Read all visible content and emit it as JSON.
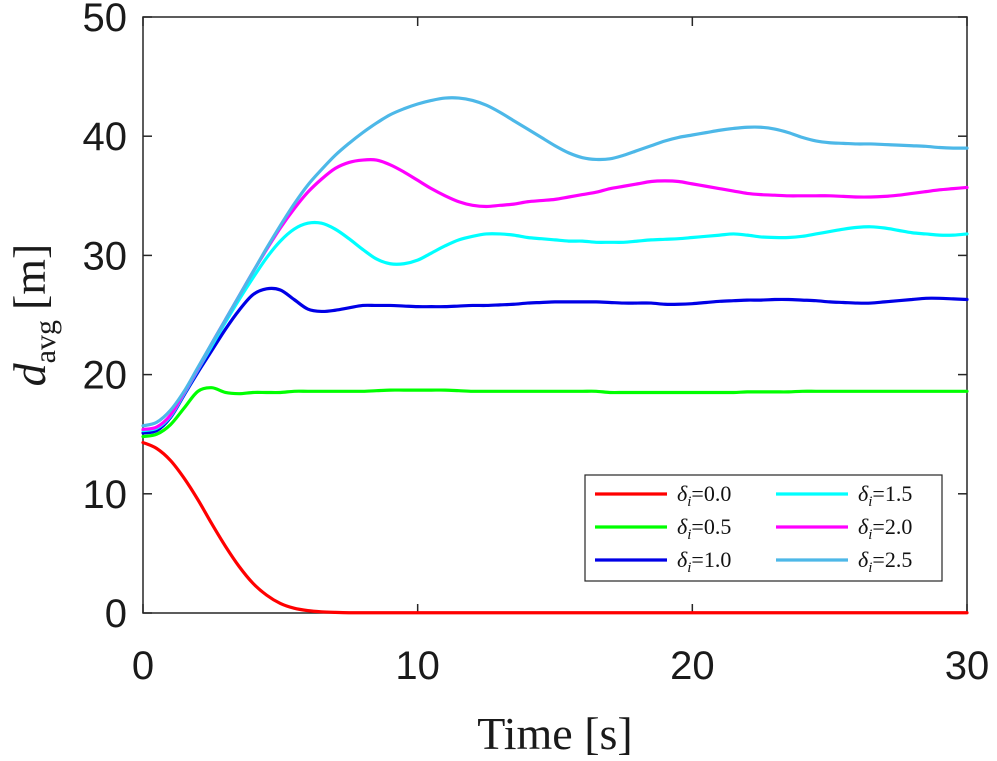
{
  "chart_data": {
    "type": "line",
    "title": "",
    "xlabel": "Time [s]",
    "ylabel": "d_avg [m]",
    "ylabel_main": "d",
    "ylabel_sub": "avg",
    "ylabel_unit": "[m]",
    "xlim": [
      0,
      30
    ],
    "ylim": [
      0,
      50
    ],
    "xticks": [
      0,
      10,
      20,
      30
    ],
    "yticks": [
      0,
      10,
      20,
      30,
      40,
      50
    ],
    "xtick_labels": [
      "0",
      "10",
      "20",
      "30"
    ],
    "ytick_labels": [
      "0",
      "10",
      "20",
      "30",
      "40",
      "50"
    ],
    "grid": false,
    "legend_position": "bottom-right",
    "x": [
      0,
      0.5,
      1,
      1.5,
      2,
      2.5,
      3,
      3.5,
      4,
      4.5,
      5,
      5.5,
      6,
      6.5,
      7,
      7.5,
      8,
      8.5,
      9,
      9.5,
      10,
      10.5,
      11,
      11.5,
      12,
      12.5,
      13,
      13.5,
      14,
      14.5,
      15,
      15.5,
      16,
      16.5,
      17,
      17.5,
      18,
      18.5,
      19,
      19.5,
      20,
      20.5,
      21,
      21.5,
      22,
      22.5,
      23,
      23.5,
      24,
      24.5,
      25,
      25.5,
      26,
      26.5,
      27,
      27.5,
      28,
      28.5,
      29,
      29.5,
      30
    ],
    "series": [
      {
        "name": "δi=0.0",
        "label_main": "δ",
        "label_sub": "i",
        "label_value": "=0.0",
        "color": "#ff0000",
        "values": [
          14.3,
          13.8,
          12.8,
          11.3,
          9.5,
          7.5,
          5.6,
          3.9,
          2.5,
          1.5,
          0.8,
          0.4,
          0.2,
          0.1,
          0.05,
          0.02,
          0.02,
          0.02,
          0.02,
          0.02,
          0.02,
          0.02,
          0.02,
          0.02,
          0.02,
          0.02,
          0.02,
          0.02,
          0.02,
          0.02,
          0.02,
          0.02,
          0.02,
          0.02,
          0.02,
          0.02,
          0.02,
          0.02,
          0.02,
          0.02,
          0.02,
          0.02,
          0.02,
          0.02,
          0.02,
          0.02,
          0.02,
          0.02,
          0.02,
          0.02,
          0.02,
          0.02,
          0.02,
          0.02,
          0.02,
          0.02,
          0.02,
          0.02,
          0.02,
          0.02,
          0.02
        ]
      },
      {
        "name": "δi=0.5",
        "label_main": "δ",
        "label_sub": "i",
        "label_value": "=0.5",
        "color": "#00ff00",
        "values": [
          14.8,
          15.0,
          15.8,
          17.2,
          18.6,
          18.9,
          18.5,
          18.4,
          18.5,
          18.5,
          18.5,
          18.6,
          18.6,
          18.6,
          18.6,
          18.6,
          18.6,
          18.65,
          18.7,
          18.7,
          18.7,
          18.7,
          18.7,
          18.65,
          18.6,
          18.6,
          18.6,
          18.6,
          18.6,
          18.6,
          18.6,
          18.6,
          18.6,
          18.6,
          18.5,
          18.5,
          18.5,
          18.5,
          18.5,
          18.5,
          18.5,
          18.5,
          18.5,
          18.5,
          18.55,
          18.55,
          18.55,
          18.55,
          18.6,
          18.6,
          18.6,
          18.6,
          18.6,
          18.6,
          18.6,
          18.6,
          18.6,
          18.6,
          18.6,
          18.6,
          18.6
        ]
      },
      {
        "name": "δi=1.0",
        "label_main": "δ",
        "label_sub": "i",
        "label_value": "=1.0",
        "color": "#0000e6",
        "values": [
          15.1,
          15.3,
          16.4,
          18.3,
          20.2,
          22.0,
          23.8,
          25.4,
          26.7,
          27.2,
          27.1,
          26.3,
          25.5,
          25.3,
          25.4,
          25.6,
          25.8,
          25.8,
          25.8,
          25.75,
          25.7,
          25.7,
          25.7,
          25.75,
          25.8,
          25.8,
          25.85,
          25.9,
          26.0,
          26.05,
          26.1,
          26.1,
          26.1,
          26.1,
          26.05,
          26.0,
          26.0,
          26.0,
          25.9,
          25.9,
          25.95,
          26.05,
          26.15,
          26.2,
          26.25,
          26.25,
          26.3,
          26.3,
          26.25,
          26.2,
          26.1,
          26.05,
          26.0,
          26.0,
          26.1,
          26.2,
          26.3,
          26.4,
          26.4,
          26.35,
          26.3
        ]
      },
      {
        "name": "δi=1.5",
        "label_main": "δ",
        "label_sub": "i",
        "label_value": "=1.5",
        "color": "#00ffff",
        "values": [
          15.3,
          15.5,
          16.5,
          18.4,
          20.4,
          22.4,
          24.4,
          26.3,
          28.1,
          29.8,
          31.2,
          32.2,
          32.7,
          32.7,
          32.2,
          31.4,
          30.5,
          29.7,
          29.3,
          29.3,
          29.6,
          30.2,
          30.8,
          31.3,
          31.6,
          31.8,
          31.8,
          31.7,
          31.5,
          31.4,
          31.3,
          31.2,
          31.2,
          31.1,
          31.1,
          31.1,
          31.2,
          31.3,
          31.35,
          31.4,
          31.5,
          31.6,
          31.7,
          31.8,
          31.7,
          31.55,
          31.5,
          31.5,
          31.6,
          31.8,
          32.0,
          32.2,
          32.35,
          32.4,
          32.3,
          32.1,
          31.9,
          31.8,
          31.7,
          31.7,
          31.8
        ]
      },
      {
        "name": "δi=2.0",
        "label_main": "δ",
        "label_sub": "i",
        "label_value": "=2.0",
        "color": "#ff00ff",
        "values": [
          15.4,
          15.6,
          16.6,
          18.5,
          20.5,
          22.6,
          24.6,
          26.6,
          28.6,
          30.5,
          32.3,
          33.9,
          35.3,
          36.4,
          37.3,
          37.8,
          38.0,
          38.0,
          37.6,
          37.0,
          36.3,
          35.6,
          35.0,
          34.5,
          34.2,
          34.1,
          34.2,
          34.3,
          34.5,
          34.6,
          34.7,
          34.9,
          35.1,
          35.3,
          35.6,
          35.8,
          36.0,
          36.2,
          36.25,
          36.2,
          36.0,
          35.8,
          35.6,
          35.4,
          35.2,
          35.1,
          35.05,
          35.0,
          35.0,
          35.0,
          35.0,
          34.95,
          34.9,
          34.9,
          34.95,
          35.05,
          35.2,
          35.35,
          35.5,
          35.6,
          35.7
        ]
      },
      {
        "name": "δi=2.5",
        "label_main": "δ",
        "label_sub": "i",
        "label_value": "=2.5",
        "color": "#4db8e8",
        "values": [
          15.7,
          16.0,
          17.0,
          18.6,
          20.6,
          22.6,
          24.6,
          26.6,
          28.6,
          30.6,
          32.5,
          34.3,
          35.9,
          37.2,
          38.4,
          39.4,
          40.3,
          41.1,
          41.8,
          42.3,
          42.7,
          43.0,
          43.2,
          43.2,
          43.0,
          42.6,
          42.0,
          41.3,
          40.6,
          39.9,
          39.2,
          38.6,
          38.2,
          38.05,
          38.1,
          38.4,
          38.8,
          39.2,
          39.6,
          39.9,
          40.1,
          40.3,
          40.5,
          40.65,
          40.75,
          40.75,
          40.6,
          40.3,
          39.9,
          39.6,
          39.45,
          39.4,
          39.35,
          39.35,
          39.3,
          39.25,
          39.2,
          39.15,
          39.05,
          39.0,
          39.0
        ]
      }
    ]
  }
}
